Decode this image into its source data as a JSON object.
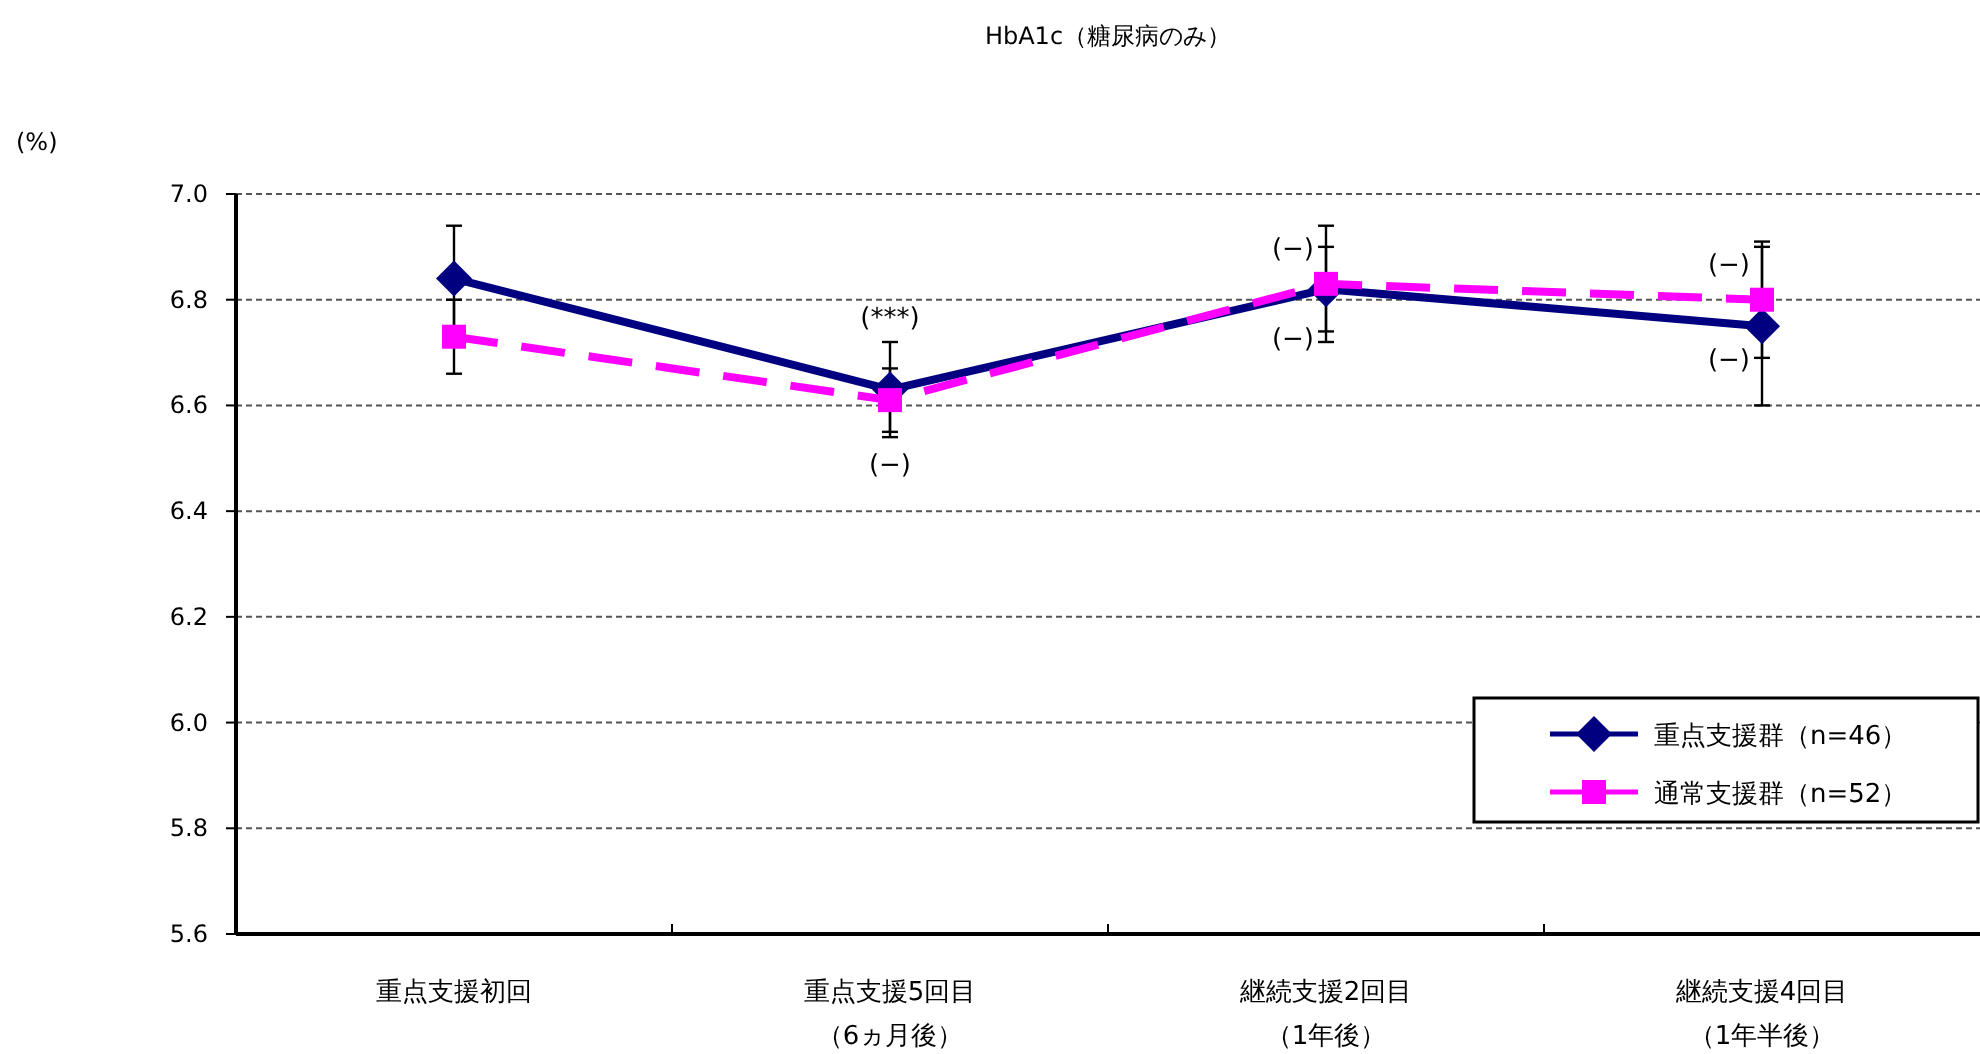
{
  "chart_data": {
    "type": "line",
    "title": "HbA1c（糖尿病のみ）",
    "categories": [
      "重点支援初回",
      "重点支援5回目（6ヵ月後）",
      "継続支援2回目（1年後）",
      "継続支援4回目（1年半後）"
    ],
    "series": [
      {
        "name": "重点支援群（n=46）",
        "color": "#000080",
        "values": [
          6.84,
          6.63,
          6.82,
          6.75
        ],
        "errors": [
          0.1,
          0.09,
          0.08,
          0.15
        ],
        "marker": "diamond",
        "line_style": "solid"
      },
      {
        "name": "通常支援群（n=52）",
        "color": "#ff00ff",
        "values": [
          6.73,
          6.61,
          6.83,
          6.8
        ],
        "errors": [
          0.07,
          0.06,
          0.11,
          0.11
        ],
        "marker": "square",
        "line_style": "dashed"
      }
    ],
    "ylim": [
      5.6,
      7.0
    ],
    "yticks": [
      {
        "value": 5.6,
        "label": "5.6"
      },
      {
        "value": 5.8,
        "label": "5.8"
      },
      {
        "value": 6.0,
        "label": "6.0"
      },
      {
        "value": 6.2,
        "label": "6.2"
      },
      {
        "value": 6.4,
        "label": "6.4"
      },
      {
        "value": 6.6,
        "label": "6.6"
      },
      {
        "value": 6.8,
        "label": "6.8"
      },
      {
        "value": 7.0,
        "label": "7.0"
      }
    ],
    "grid": "y",
    "legend": "bottom right",
    "annotations": [
      "(%)",
      {
        "text": "(***)",
        "x": "重点支援5回目（6ヵ月後）",
        "y": 6.72
      },
      {
        "text": "(−)",
        "x": "重点支援5回目（6ヵ月後）",
        "y": 6.54
      },
      {
        "text": "(−)",
        "x": "継続支援2回目（1年後）",
        "y": 6.9
      },
      {
        "text": "(−)",
        "x": "継続支援2回目（1年後）",
        "y": 6.73
      },
      {
        "text": "(−)",
        "x": "継続支援4回目（1年半後）",
        "y": 6.87
      },
      {
        "text": "(−)",
        "x": "継続支援4回目（1年半後）",
        "y": 6.69
      }
    ]
  }
}
